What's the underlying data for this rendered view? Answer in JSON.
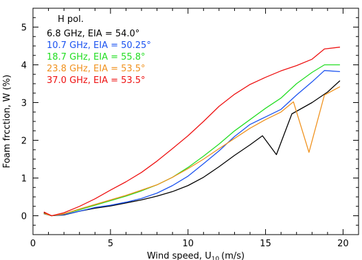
{
  "chart_data": {
    "type": "line",
    "title": "",
    "xlabel": "Wind speed, U",
    "xlabel_sub": "10",
    "xlabel_unit": "(m/s)",
    "ylabel": "Foam frcction, W (%)",
    "xlim": [
      0,
      21
    ],
    "ylim": [
      -0.5,
      5.5
    ],
    "x_ticks": [
      0,
      5,
      10,
      15,
      20
    ],
    "y_ticks": [
      0,
      1,
      2,
      3,
      4,
      5
    ],
    "grid": false,
    "legend_title": "H pol.",
    "legend_position": "top-left",
    "series": [
      {
        "name": "6.8 GHz, EIA = 54.0°",
        "color": "#000000",
        "points": [
          [
            0.7,
            0.08
          ],
          [
            1.2,
            0.0
          ],
          [
            2.0,
            0.02
          ],
          [
            3.0,
            0.12
          ],
          [
            4.0,
            0.2
          ],
          [
            5.0,
            0.26
          ],
          [
            6.0,
            0.34
          ],
          [
            7.0,
            0.42
          ],
          [
            8.0,
            0.52
          ],
          [
            9.0,
            0.64
          ],
          [
            10.0,
            0.8
          ],
          [
            11.0,
            1.02
          ],
          [
            12.0,
            1.3
          ],
          [
            13.0,
            1.6
          ],
          [
            14.0,
            1.88
          ],
          [
            14.8,
            2.12
          ],
          [
            15.7,
            1.62
          ],
          [
            16.7,
            2.7
          ],
          [
            18.0,
            3.0
          ],
          [
            19.0,
            3.28
          ],
          [
            19.8,
            3.58
          ]
        ]
      },
      {
        "name": "10.7 GHz, EIA = 50.25°",
        "color": "#1a52f0",
        "points": [
          [
            0.7,
            0.05
          ],
          [
            1.2,
            0.0
          ],
          [
            2.0,
            0.03
          ],
          [
            3.0,
            0.12
          ],
          [
            4.0,
            0.22
          ],
          [
            5.0,
            0.28
          ],
          [
            6.0,
            0.36
          ],
          [
            7.0,
            0.46
          ],
          [
            8.0,
            0.6
          ],
          [
            9.0,
            0.8
          ],
          [
            10.0,
            1.05
          ],
          [
            11.0,
            1.38
          ],
          [
            12.0,
            1.72
          ],
          [
            13.0,
            2.1
          ],
          [
            14.0,
            2.42
          ],
          [
            15.0,
            2.62
          ],
          [
            16.0,
            2.82
          ],
          [
            17.0,
            3.2
          ],
          [
            18.0,
            3.55
          ],
          [
            18.8,
            3.85
          ],
          [
            19.8,
            3.82
          ]
        ]
      },
      {
        "name": "18.7 GHz, EIA = 55.8°",
        "color": "#22dd22",
        "points": [
          [
            0.7,
            0.06
          ],
          [
            1.2,
            0.0
          ],
          [
            2.0,
            0.05
          ],
          [
            3.0,
            0.16
          ],
          [
            4.0,
            0.28
          ],
          [
            5.0,
            0.4
          ],
          [
            6.0,
            0.52
          ],
          [
            7.0,
            0.66
          ],
          [
            8.0,
            0.82
          ],
          [
            9.0,
            1.02
          ],
          [
            10.0,
            1.28
          ],
          [
            11.0,
            1.58
          ],
          [
            12.0,
            1.9
          ],
          [
            13.0,
            2.25
          ],
          [
            14.0,
            2.55
          ],
          [
            15.0,
            2.85
          ],
          [
            16.0,
            3.12
          ],
          [
            17.0,
            3.5
          ],
          [
            18.0,
            3.8
          ],
          [
            18.8,
            4.0
          ],
          [
            19.8,
            4.0
          ]
        ]
      },
      {
        "name": "23.8 GHz, EIA = 53.5°",
        "color": "#f0921e",
        "points": [
          [
            0.7,
            0.06
          ],
          [
            1.2,
            0.0
          ],
          [
            2.0,
            0.05
          ],
          [
            3.0,
            0.18
          ],
          [
            4.0,
            0.3
          ],
          [
            5.0,
            0.42
          ],
          [
            6.0,
            0.54
          ],
          [
            7.0,
            0.68
          ],
          [
            8.0,
            0.82
          ],
          [
            9.0,
            1.02
          ],
          [
            10.0,
            1.25
          ],
          [
            11.0,
            1.5
          ],
          [
            12.0,
            1.78
          ],
          [
            13.0,
            2.05
          ],
          [
            14.0,
            2.32
          ],
          [
            15.0,
            2.55
          ],
          [
            16.0,
            2.75
          ],
          [
            16.8,
            3.02
          ],
          [
            17.8,
            1.68
          ],
          [
            18.8,
            3.2
          ],
          [
            19.8,
            3.42
          ]
        ]
      },
      {
        "name": "37.0 GHz, EIA = 53.5°",
        "color": "#ee1111",
        "points": [
          [
            0.7,
            0.1
          ],
          [
            1.2,
            0.0
          ],
          [
            2.0,
            0.08
          ],
          [
            3.0,
            0.25
          ],
          [
            4.0,
            0.45
          ],
          [
            5.0,
            0.68
          ],
          [
            6.0,
            0.9
          ],
          [
            7.0,
            1.15
          ],
          [
            8.0,
            1.45
          ],
          [
            9.0,
            1.78
          ],
          [
            10.0,
            2.12
          ],
          [
            11.0,
            2.5
          ],
          [
            12.0,
            2.9
          ],
          [
            13.0,
            3.22
          ],
          [
            14.0,
            3.48
          ],
          [
            15.0,
            3.67
          ],
          [
            16.0,
            3.84
          ],
          [
            17.0,
            3.98
          ],
          [
            18.0,
            4.15
          ],
          [
            18.8,
            4.42
          ],
          [
            19.8,
            4.47
          ]
        ]
      }
    ]
  }
}
